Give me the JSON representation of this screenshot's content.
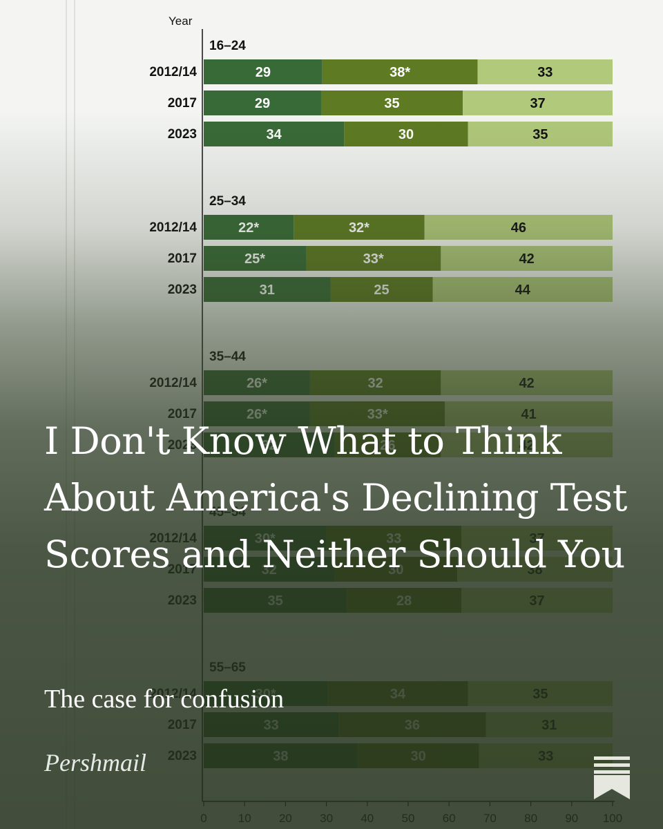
{
  "article": {
    "title": "I Don't Know What to Think About America's Declining Test Scores and Neither Should You",
    "subtitle": "The case for confusion",
    "author": "Pershmail"
  },
  "colors": {
    "dark_green": "#386a37",
    "mid_green": "#5e7a22",
    "light_green": "#b1c97b",
    "text_dark": "#111111",
    "text_light": "#ffffff",
    "overlay": "#2f4028"
  },
  "chart_data": {
    "type": "bar",
    "orientation": "horizontal-stacked-100",
    "ylabel": "Year",
    "xlim": [
      0,
      100
    ],
    "xticks": [
      0,
      10,
      20,
      30,
      40,
      50,
      60,
      70,
      80,
      90,
      100
    ],
    "groups": [
      {
        "name": "16–24",
        "rows": [
          {
            "year": "2012/14",
            "values": [
              29,
              38,
              33
            ],
            "labels": [
              "29",
              "38*",
              "33"
            ]
          },
          {
            "year": "2017",
            "values": [
              29,
              35,
              37
            ],
            "labels": [
              "29",
              "35",
              "37"
            ]
          },
          {
            "year": "2023",
            "values": [
              34,
              30,
              35
            ],
            "labels": [
              "34",
              "30",
              "35"
            ]
          }
        ]
      },
      {
        "name": "25–34",
        "rows": [
          {
            "year": "2012/14",
            "values": [
              22,
              32,
              46
            ],
            "labels": [
              "22*",
              "32*",
              "46"
            ]
          },
          {
            "year": "2017",
            "values": [
              25,
              33,
              42
            ],
            "labels": [
              "25*",
              "33*",
              "42"
            ]
          },
          {
            "year": "2023",
            "values": [
              31,
              25,
              44
            ],
            "labels": [
              "31",
              "25",
              "44"
            ]
          }
        ]
      },
      {
        "name": "35–44",
        "rows": [
          {
            "year": "2012/14",
            "values": [
              26,
              32,
              42
            ],
            "labels": [
              "26*",
              "32",
              "42"
            ]
          },
          {
            "year": "2017",
            "values": [
              26,
              33,
              41
            ],
            "labels": [
              "26*",
              "33*",
              "41"
            ]
          },
          {
            "year": "2023",
            "values": [
              32,
              26,
              42
            ],
            "labels": [
              "32",
              "26",
              "42"
            ]
          }
        ]
      },
      {
        "name": "45–54",
        "rows": [
          {
            "year": "2012/14",
            "values": [
              30,
              33,
              37
            ],
            "labels": [
              "30*",
              "33",
              "37"
            ]
          },
          {
            "year": "2017",
            "values": [
              32,
              30,
              38
            ],
            "labels": [
              "32",
              "30",
              "38"
            ]
          },
          {
            "year": "2023",
            "values": [
              35,
              28,
              37
            ],
            "labels": [
              "35",
              "28",
              "37"
            ]
          }
        ]
      },
      {
        "name": "55–65",
        "rows": [
          {
            "year": "2012/14",
            "values": [
              30,
              34,
              35
            ],
            "labels": [
              "30*",
              "34",
              "35"
            ]
          },
          {
            "year": "2017",
            "values": [
              33,
              36,
              31
            ],
            "labels": [
              "33",
              "36",
              "31"
            ]
          },
          {
            "year": "2023",
            "values": [
              38,
              30,
              33
            ],
            "labels": [
              "38",
              "30",
              "33"
            ]
          }
        ]
      }
    ]
  }
}
